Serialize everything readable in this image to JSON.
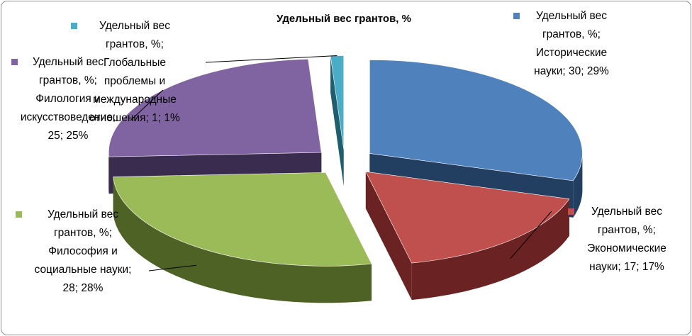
{
  "chart_data": {
    "type": "pie",
    "title": "Удельный вес грантов, %",
    "series": [
      {
        "name": "Удельный вес грантов, %",
        "slices": [
          {
            "category": "Исторические науки",
            "value": 30,
            "percent": 29,
            "color": "#4f81bd",
            "side": "#223e60",
            "label": "Удельный вес\nгрантов, %;\nИсторические\nнауки; 30; 29%"
          },
          {
            "category": "Экономические науки",
            "value": 17,
            "percent": 17,
            "color": "#c0504d",
            "side": "#6a2322",
            "label": "Удельный вес\nгрантов, %;\nЭкономические\nнауки; 17; 17%"
          },
          {
            "category": "Философия и социальные науки",
            "value": 28,
            "percent": 28,
            "color": "#9bbb59",
            "side": "#4e6226",
            "label": "Удельный вес\nгрантов, %;\nФилософия и\nсоциальные науки;\n28; 28%"
          },
          {
            "category": "Филология и искусствоведение",
            "value": 25,
            "percent": 25,
            "color": "#8064a2",
            "side": "#3a2c4e",
            "label": "Удельный вес\nгрантов, %;\nФилология и\nискусствоведение;\n25; 25%"
          },
          {
            "category": "Глобальные проблемы и международные отношения",
            "value": 1,
            "percent": 1,
            "color": "#4bacc6",
            "side": "#1f5e6e",
            "label": "Удельный вес\nгрантов, %;\nГлобальные\nпроблемы и\nмеждународные\nотношения; 1; 1%"
          }
        ]
      }
    ],
    "legend": "none",
    "data_labels": "outside with leader lines"
  }
}
